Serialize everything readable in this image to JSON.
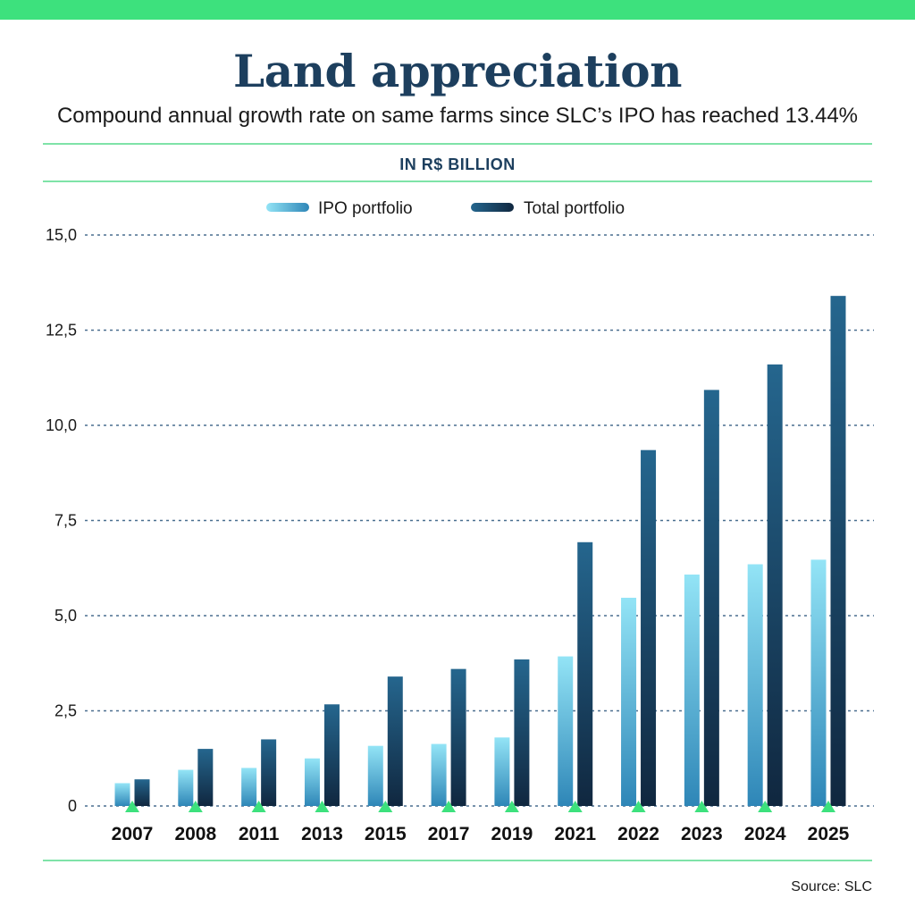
{
  "header": {
    "title": "Land appreciation",
    "subtitle": "Compound annual growth rate on same farms since SLC’s IPO has reached 13.44%",
    "unit": "IN R$ BILLION"
  },
  "footer": {
    "source": "Source: SLC"
  },
  "colors": {
    "top_bar": "#3de17d",
    "rule": "#7fe3a8",
    "title": "#1d3f5e",
    "marker": "#3de17d",
    "grid": "#4a6f8f",
    "ipo_top": "#93e4f6",
    "ipo_bottom": "#2e86b7",
    "total_top": "#25668e",
    "total_bottom": "#10273f"
  },
  "chart_data": {
    "type": "bar",
    "title": "Land appreciation",
    "xlabel": "",
    "ylabel": "IN R$ BILLION",
    "ylim": [
      0,
      15
    ],
    "yticks": [
      0,
      2.5,
      5,
      7.5,
      10,
      12.5,
      15
    ],
    "ytick_labels": [
      "0",
      "2,5",
      "5,0",
      "7,5",
      "10,0",
      "12,5",
      "15,0"
    ],
    "grid": true,
    "legend_position": "top-center",
    "categories": [
      "2007",
      "2008",
      "2011",
      "2013",
      "2015",
      "2017",
      "2019",
      "2021",
      "2022",
      "2023",
      "2024",
      "2025"
    ],
    "series": [
      {
        "name": "IPO portfolio",
        "values": [
          0.6,
          0.95,
          1.0,
          1.25,
          1.58,
          1.63,
          1.8,
          3.93,
          5.47,
          6.08,
          6.35,
          6.47
        ]
      },
      {
        "name": "Total portfolio",
        "values": [
          0.7,
          1.5,
          1.75,
          2.67,
          3.4,
          3.6,
          3.85,
          6.93,
          9.35,
          10.93,
          11.6,
          13.4
        ]
      }
    ]
  }
}
